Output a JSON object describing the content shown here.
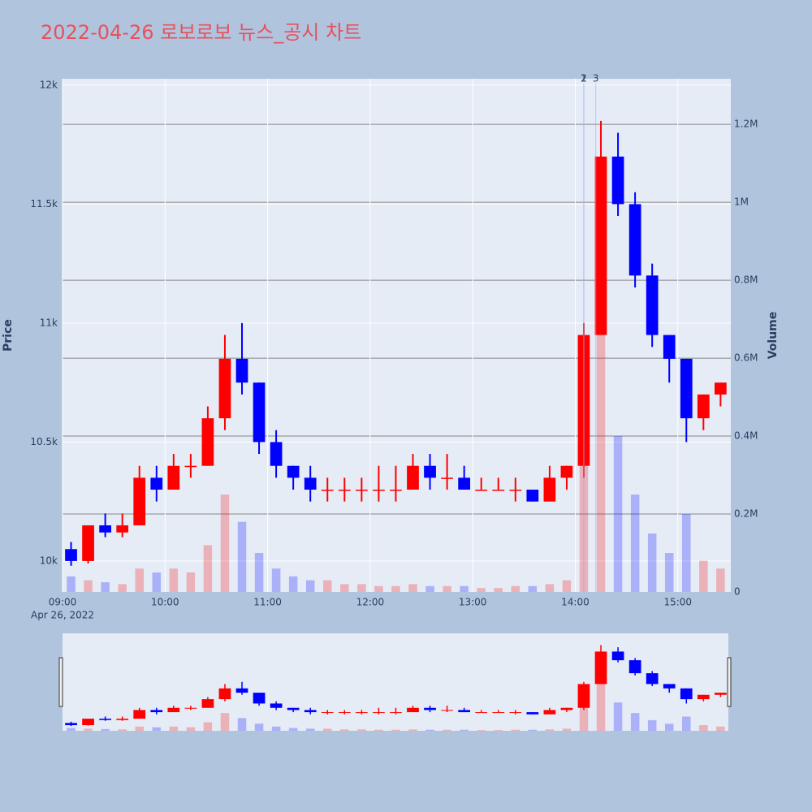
{
  "chart_data": {
    "type": "candlestick",
    "title": "2022-04-26 로보로보 뉴스_공시 차트",
    "y_label": "Price",
    "y2_label": "Volume",
    "x_date_label": "Apr 26, 2022",
    "increasing_color": "#ff0000",
    "decreasing_color": "#0000ff",
    "x": [
      "09:00",
      "09:10",
      "09:20",
      "09:30",
      "09:40",
      "09:50",
      "10:00",
      "10:10",
      "10:20",
      "10:30",
      "10:40",
      "10:50",
      "11:00",
      "11:10",
      "11:20",
      "11:30",
      "11:40",
      "11:50",
      "12:00",
      "12:10",
      "12:20",
      "12:30",
      "12:40",
      "12:50",
      "13:00",
      "13:10",
      "13:20",
      "13:30",
      "13:40",
      "13:50",
      "14:00",
      "14:10",
      "14:20",
      "14:30",
      "14:40",
      "14:50",
      "15:00",
      "15:10",
      "15:20"
    ],
    "open": [
      10050,
      10000,
      10150,
      10120,
      10150,
      10350,
      10300,
      10400,
      10400,
      10600,
      10850,
      10750,
      10500,
      10400,
      10350,
      10300,
      10300,
      10300,
      10300,
      10300,
      10300,
      10400,
      10350,
      10350,
      10300,
      10300,
      10300,
      10300,
      10250,
      10350,
      10400,
      10950,
      11700,
      11500,
      11200,
      10950,
      10850,
      10600,
      10700
    ],
    "high": [
      10080,
      10150,
      10200,
      10200,
      10400,
      10400,
      10450,
      10450,
      10650,
      10950,
      11000,
      10750,
      10550,
      10400,
      10400,
      10350,
      10350,
      10350,
      10400,
      10400,
      10450,
      10450,
      10450,
      10400,
      10350,
      10350,
      10350,
      10300,
      10400,
      10400,
      11000,
      11850,
      11800,
      11550,
      11250,
      10950,
      10850,
      10700,
      10750
    ],
    "low": [
      9980,
      9990,
      10100,
      10100,
      10150,
      10250,
      10300,
      10350,
      10400,
      10550,
      10700,
      10450,
      10350,
      10300,
      10250,
      10250,
      10250,
      10250,
      10250,
      10250,
      10300,
      10300,
      10300,
      10300,
      10300,
      10300,
      10250,
      10250,
      10250,
      10300,
      10350,
      10950,
      11450,
      11150,
      10900,
      10750,
      10500,
      10550,
      10650
    ],
    "close": [
      10000,
      10150,
      10120,
      10150,
      10350,
      10300,
      10400,
      10400,
      10600,
      10850,
      10750,
      10500,
      10400,
      10350,
      10300,
      10300,
      10300,
      10300,
      10300,
      10300,
      10400,
      10350,
      10350,
      10300,
      10300,
      10300,
      10300,
      10250,
      10350,
      10400,
      10950,
      11700,
      11500,
      11200,
      10950,
      10850,
      10600,
      10700,
      10750
    ],
    "volume": [
      40000,
      30000,
      25000,
      20000,
      60000,
      50000,
      60000,
      50000,
      120000,
      250000,
      180000,
      100000,
      60000,
      40000,
      30000,
      30000,
      20000,
      20000,
      15000,
      15000,
      20000,
      15000,
      15000,
      15000,
      10000,
      10000,
      15000,
      15000,
      20000,
      30000,
      450000,
      700000,
      400000,
      250000,
      150000,
      100000,
      200000,
      80000,
      60000
    ],
    "xlim": [
      "09:00",
      "15:31"
    ],
    "xticks": [
      "09:00",
      "10:00",
      "11:00",
      "12:00",
      "13:00",
      "14:00",
      "15:00"
    ],
    "ylim": [
      9870,
      12027
    ],
    "yticks": [
      {
        "value": 10000,
        "label": "10k"
      },
      {
        "value": 10500,
        "label": "10.5k"
      },
      {
        "value": 11000,
        "label": "11k"
      },
      {
        "value": 11500,
        "label": "11.5k"
      },
      {
        "value": 12000,
        "label": "12k"
      }
    ],
    "y2lim": [
      0,
      1317000
    ],
    "y2ticks": [
      0,
      {
        "value": 200000,
        "label": "0.2M"
      },
      {
        "value": 400000,
        "label": "0.4M"
      },
      {
        "value": 600000,
        "label": "0.6M"
      },
      {
        "value": 800000,
        "label": "0.8M"
      },
      {
        "value": 1000000,
        "label": "1M"
      },
      {
        "value": 1200000,
        "label": "1.2M"
      }
    ],
    "annotations": [
      {
        "text": "1",
        "x": "14:05"
      },
      {
        "text": "2",
        "x": "14:05"
      },
      {
        "text": "3",
        "x": "14:12"
      }
    ],
    "grid": true
  }
}
